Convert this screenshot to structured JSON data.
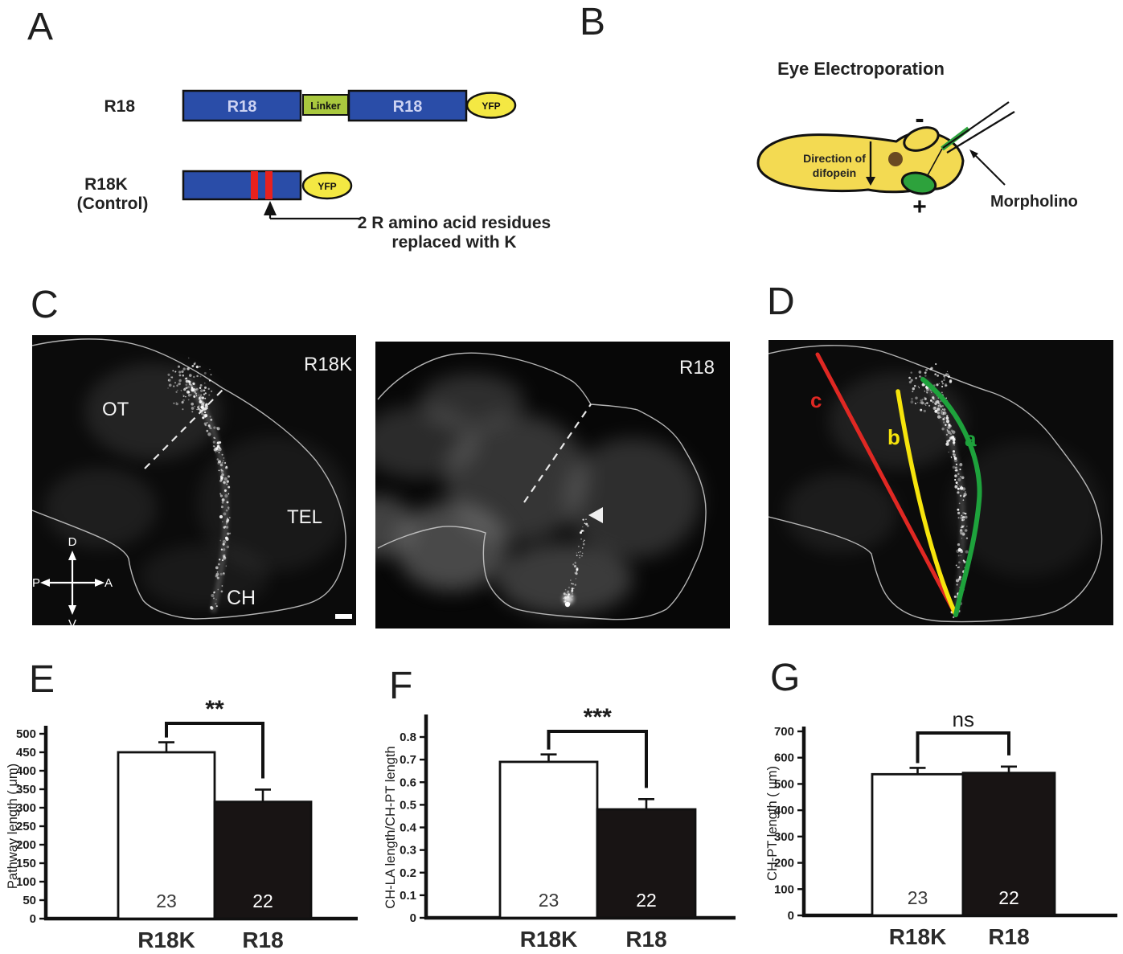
{
  "panels": {
    "a": {
      "label": "A",
      "construct1": {
        "name": "R18",
        "domain1": "R18",
        "linker": "Linker",
        "domain2": "R18",
        "tag": "YFP"
      },
      "construct2": {
        "name_line1": "R18K",
        "name_line2": "(Control)",
        "tag": "YFP"
      },
      "annotation": {
        "line1": "2 R amino acid residues",
        "line2": "replaced with K"
      },
      "colors": {
        "domain_blue": "#2a4da8",
        "linker_green": "#a9c83e",
        "yfp_yellow": "#f4e843",
        "mutation_red": "#e8211d"
      }
    },
    "b": {
      "label": "B",
      "title": "Eye Electroporation",
      "direction_label_line1": "Direction of",
      "direction_label_line2": "difopein",
      "electrode_minus": "-",
      "electrode_plus": "+",
      "morpholino_label": "Morpholino",
      "colors": {
        "body_yellow": "#f3da52",
        "eye_green": "#2da23c",
        "pigment_brown": "#6a4a22"
      }
    },
    "c": {
      "label": "C",
      "left_image": {
        "condition_label": "R18K",
        "region_ot": "OT",
        "region_tel": "TEL",
        "region_ch": "CH",
        "compass": {
          "dorsal": "D",
          "ventral": "V",
          "posterior": "P",
          "anterior": "A"
        }
      },
      "right_image": {
        "condition_label": "R18"
      }
    },
    "d": {
      "label": "D",
      "measure_lines": [
        {
          "id": "a",
          "label": "a",
          "color": "#1ea23c"
        },
        {
          "id": "b",
          "label": "b",
          "color": "#f6e40c"
        },
        {
          "id": "c",
          "label": "c",
          "color": "#e02823"
        }
      ]
    }
  },
  "chart_data": [
    {
      "panel": "E",
      "type": "bar",
      "ylabel": "Pathway length ( μm)",
      "categories": [
        "R18K",
        "R18"
      ],
      "values": [
        450,
        316
      ],
      "errors_upper": [
        27,
        33
      ],
      "n_per_bar": [
        "23",
        "22"
      ],
      "bar_fills": [
        "#ffffff",
        "#181414"
      ],
      "ylim": [
        0,
        500
      ],
      "yticks": [
        0,
        50,
        100,
        150,
        200,
        250,
        300,
        350,
        400,
        450,
        500
      ],
      "significance": "**",
      "legend": "none",
      "grid": "off"
    },
    {
      "panel": "F",
      "type": "bar",
      "ylabel": "CH-LA length/CH-PT length",
      "categories": [
        "R18K",
        "R18"
      ],
      "values": [
        0.69,
        0.48
      ],
      "errors_upper": [
        0.033,
        0.045
      ],
      "n_per_bar": [
        "23",
        "22"
      ],
      "bar_fills": [
        "#ffffff",
        "#181414"
      ],
      "ylim": [
        0,
        0.8
      ],
      "yticks": [
        0,
        0.1,
        0.2,
        0.3,
        0.4,
        0.5,
        0.6,
        0.7,
        0.8
      ],
      "significance": "***",
      "legend": "none",
      "grid": "off"
    },
    {
      "panel": "G",
      "type": "bar",
      "ylabel": "CH-PT length ( μm)",
      "categories": [
        "R18K",
        "R18"
      ],
      "values": [
        537,
        542
      ],
      "errors_upper": [
        24,
        24
      ],
      "n_per_bar": [
        "23",
        "22"
      ],
      "bar_fills": [
        "#ffffff",
        "#181414"
      ],
      "ylim": [
        0,
        700
      ],
      "yticks": [
        0,
        100,
        200,
        300,
        400,
        500,
        600,
        700
      ],
      "significance": "ns",
      "legend": "none",
      "grid": "off"
    }
  ]
}
